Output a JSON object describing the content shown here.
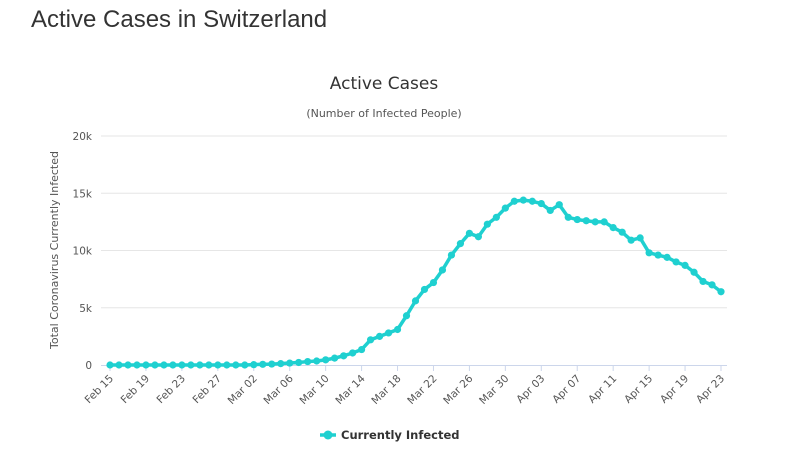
{
  "page": {
    "title": "Active Cases in Switzerland"
  },
  "chart_data": {
    "type": "line",
    "title": "Active Cases",
    "subtitle": "(Number of Infected People)",
    "xlabel": "",
    "ylabel": "Total Coronavirus Currently Infected",
    "ylim": [
      0,
      20000
    ],
    "y_ticks": [
      0,
      5000,
      10000,
      15000,
      20000
    ],
    "y_tick_labels": [
      "0",
      "5k",
      "10k",
      "15k",
      "20k"
    ],
    "grid": true,
    "legend_position": "bottom-center",
    "color": "#1fd0d0",
    "x_tick_labels": [
      "Feb 15",
      "Feb 19",
      "Feb 23",
      "Feb 27",
      "Mar 02",
      "Mar 06",
      "Mar 10",
      "Mar 14",
      "Mar 18",
      "Mar 22",
      "Mar 26",
      "Mar 30",
      "Apr 03",
      "Apr 07",
      "Apr 11",
      "Apr 15",
      "Apr 19",
      "Apr 23"
    ],
    "x": [
      "Feb 15",
      "Feb 16",
      "Feb 17",
      "Feb 18",
      "Feb 19",
      "Feb 20",
      "Feb 21",
      "Feb 22",
      "Feb 23",
      "Feb 24",
      "Feb 25",
      "Feb 26",
      "Feb 27",
      "Feb 28",
      "Feb 29",
      "Mar 01",
      "Mar 02",
      "Mar 03",
      "Mar 04",
      "Mar 05",
      "Mar 06",
      "Mar 07",
      "Mar 08",
      "Mar 09",
      "Mar 10",
      "Mar 11",
      "Mar 12",
      "Mar 13",
      "Mar 14",
      "Mar 15",
      "Mar 16",
      "Mar 17",
      "Mar 18",
      "Mar 19",
      "Mar 20",
      "Mar 21",
      "Mar 22",
      "Mar 23",
      "Mar 24",
      "Mar 25",
      "Mar 26",
      "Mar 27",
      "Mar 28",
      "Mar 29",
      "Mar 30",
      "Mar 31",
      "Apr 01",
      "Apr 02",
      "Apr 03",
      "Apr 04",
      "Apr 05",
      "Apr 06",
      "Apr 07",
      "Apr 08",
      "Apr 09",
      "Apr 10",
      "Apr 11",
      "Apr 12",
      "Apr 13",
      "Apr 14",
      "Apr 15",
      "Apr 16",
      "Apr 17",
      "Apr 18",
      "Apr 19",
      "Apr 20",
      "Apr 21",
      "Apr 22",
      "Apr 23"
    ],
    "series": [
      {
        "name": "Currently Infected",
        "values": [
          0,
          0,
          0,
          0,
          0,
          0,
          0,
          0,
          0,
          0,
          0,
          0,
          0,
          0,
          0,
          0,
          30,
          60,
          80,
          120,
          170,
          220,
          300,
          350,
          450,
          600,
          800,
          1050,
          1350,
          2200,
          2500,
          2800,
          3100,
          4300,
          5600,
          6600,
          7200,
          8300,
          9600,
          10600,
          11500,
          11200,
          12300,
          12900,
          13700,
          14300,
          14400,
          14300,
          14100,
          13500,
          14000,
          12900,
          12700,
          12600,
          12500,
          12500,
          12000,
          11600,
          10900,
          11100,
          9800,
          9600,
          9400,
          9000,
          8700,
          8100,
          7300,
          7000,
          6400
        ]
      }
    ]
  }
}
